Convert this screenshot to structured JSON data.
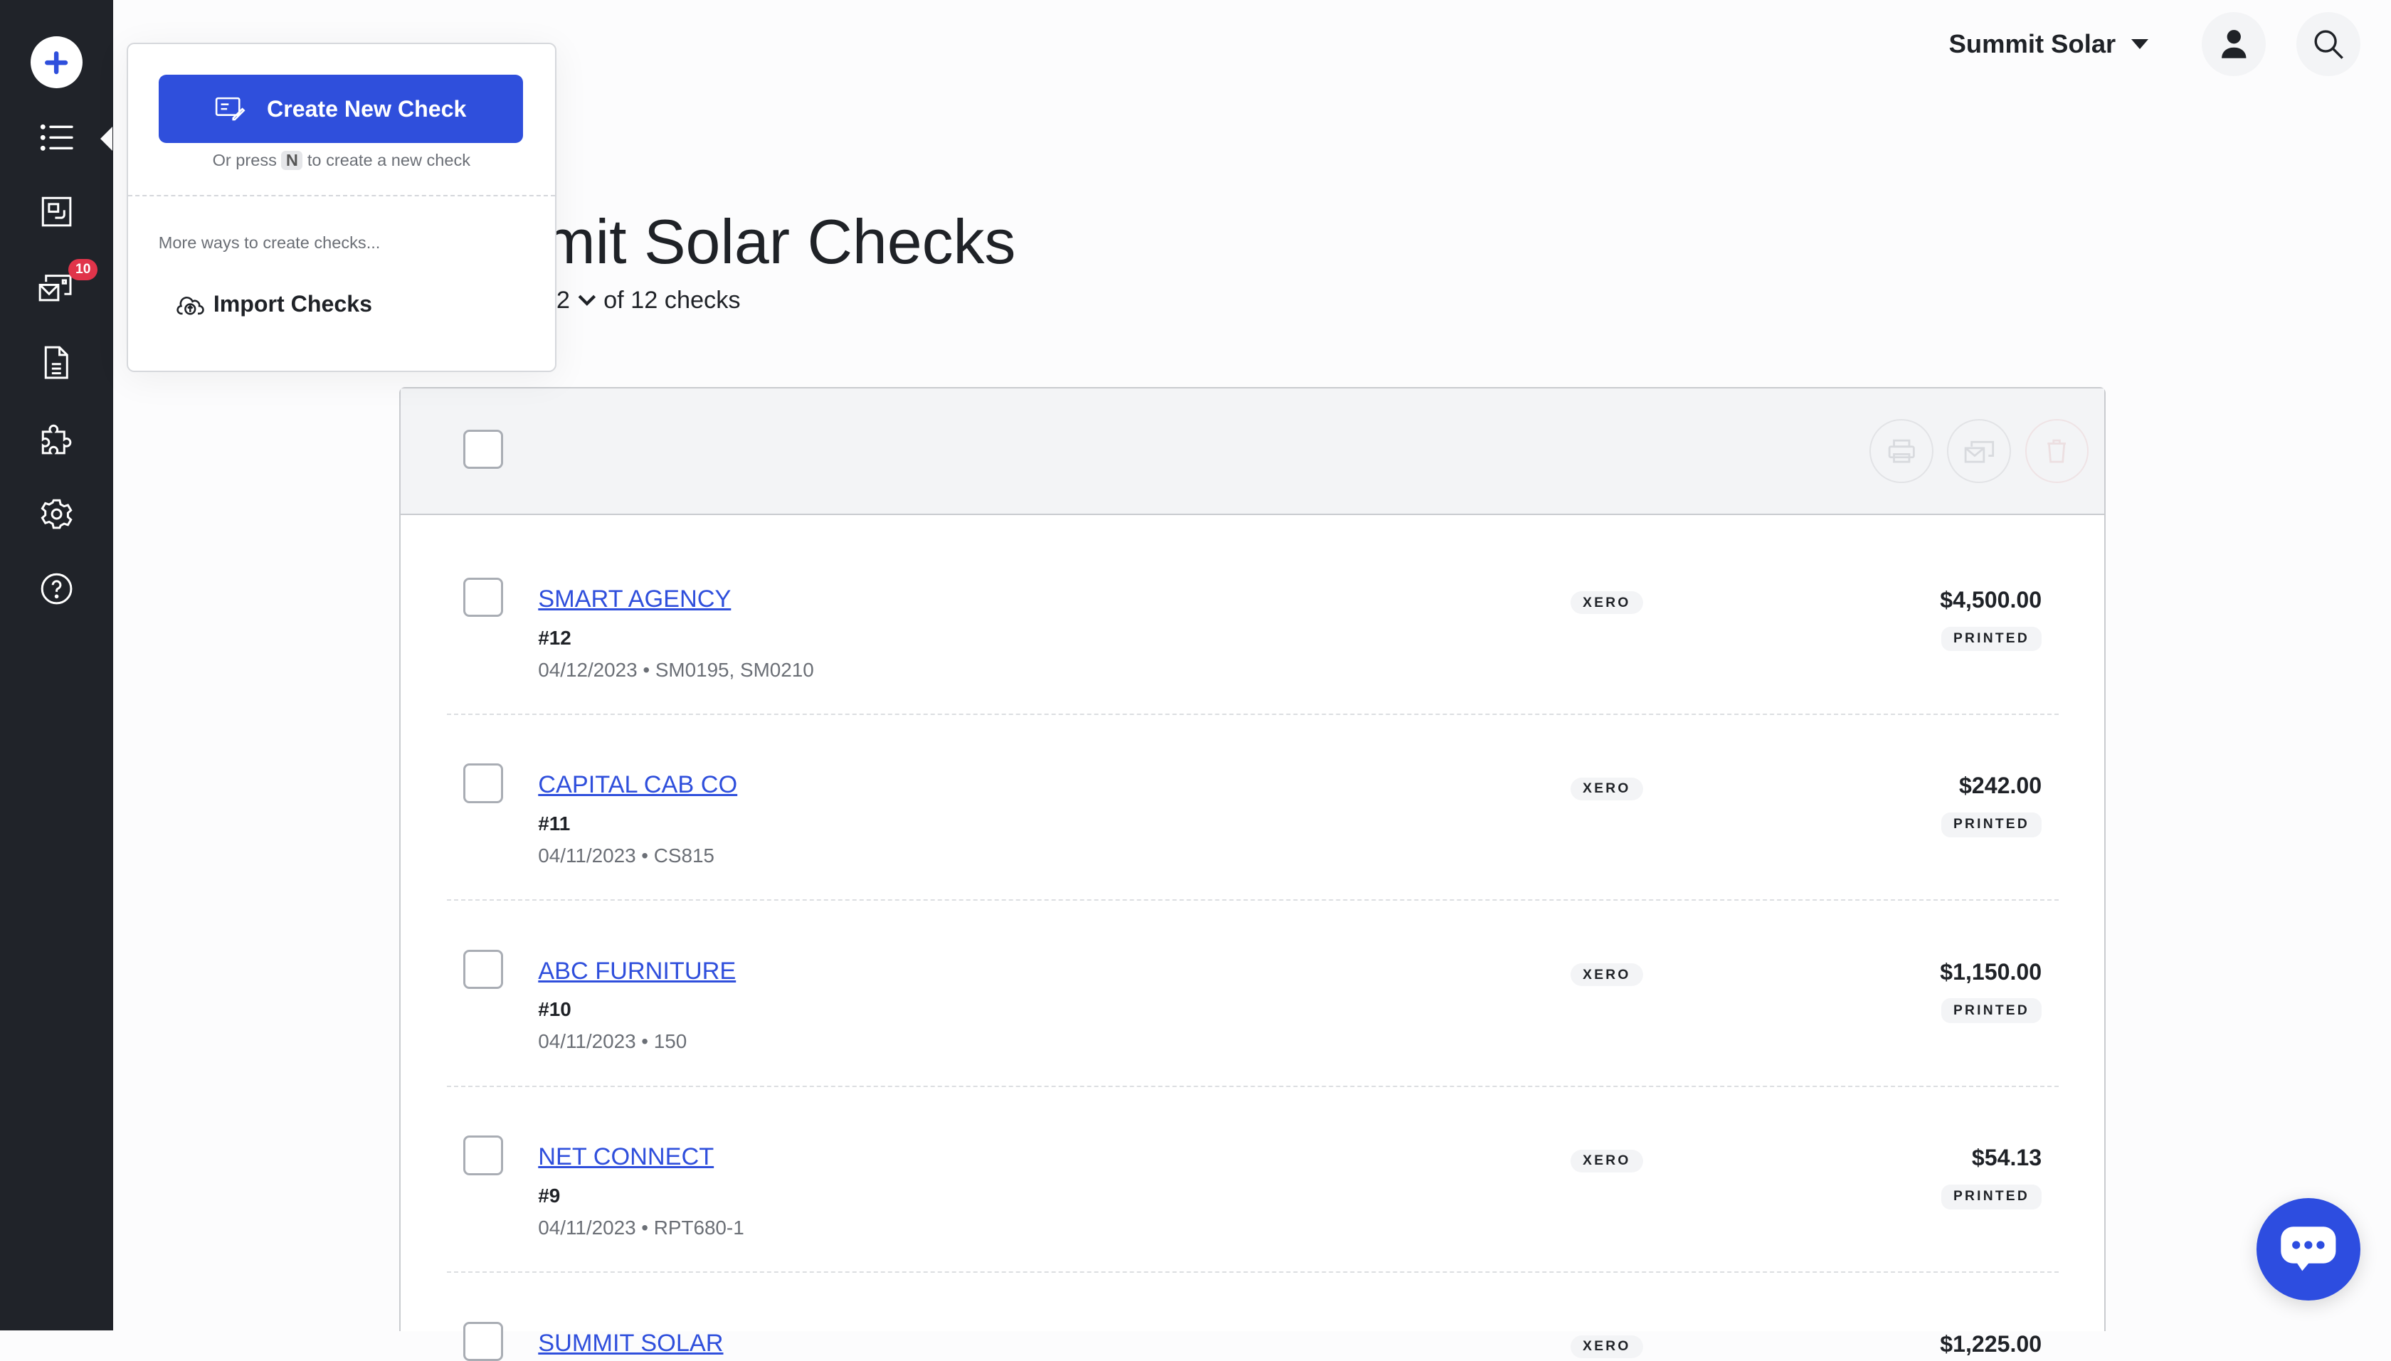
{
  "sidebar": {
    "items": [
      {
        "icon": "plus-icon"
      },
      {
        "icon": "list-icon"
      },
      {
        "icon": "scan-icon"
      },
      {
        "icon": "mail-checks-icon",
        "badge": "10"
      },
      {
        "icon": "document-icon"
      },
      {
        "icon": "puzzle-icon"
      },
      {
        "icon": "gear-icon"
      },
      {
        "icon": "help-icon"
      }
    ]
  },
  "header": {
    "company": "Summit Solar",
    "user_icon": "user-icon",
    "search_icon": "search-icon"
  },
  "page": {
    "title": "Summit Solar Checks",
    "page_size": "12",
    "count_text": "of 12 checks"
  },
  "popover": {
    "create_label": "Create New Check",
    "hint_before": "Or press",
    "hint_key": "N",
    "hint_after": "to create a new check",
    "more_label": "More ways to create checks...",
    "import_label": "Import Checks"
  },
  "colors": {
    "accent": "#2f4fdc",
    "sidebar": "#202329",
    "badge": "#e0344a"
  },
  "checks": [
    {
      "payee": "SMART AGENCY",
      "number": "#12",
      "meta": "04/12/2023 • SM0195, SM0210",
      "source": "XERO",
      "amount": "$4,500.00",
      "status": "PRINTED"
    },
    {
      "payee": "CAPITAL CAB CO",
      "number": "#11",
      "meta": "04/11/2023 • CS815",
      "source": "XERO",
      "amount": "$242.00",
      "status": "PRINTED"
    },
    {
      "payee": "ABC FURNITURE",
      "number": "#10",
      "meta": "04/11/2023 • 150",
      "source": "XERO",
      "amount": "$1,150.00",
      "status": "PRINTED"
    },
    {
      "payee": "NET CONNECT",
      "number": "#9",
      "meta": "04/11/2023 • RPT680-1",
      "source": "XERO",
      "amount": "$54.13",
      "status": "PRINTED"
    },
    {
      "payee": "SUMMIT SOLAR",
      "number": "",
      "meta": "",
      "source": "XERO",
      "amount": "$1,225.00",
      "status": ""
    }
  ]
}
